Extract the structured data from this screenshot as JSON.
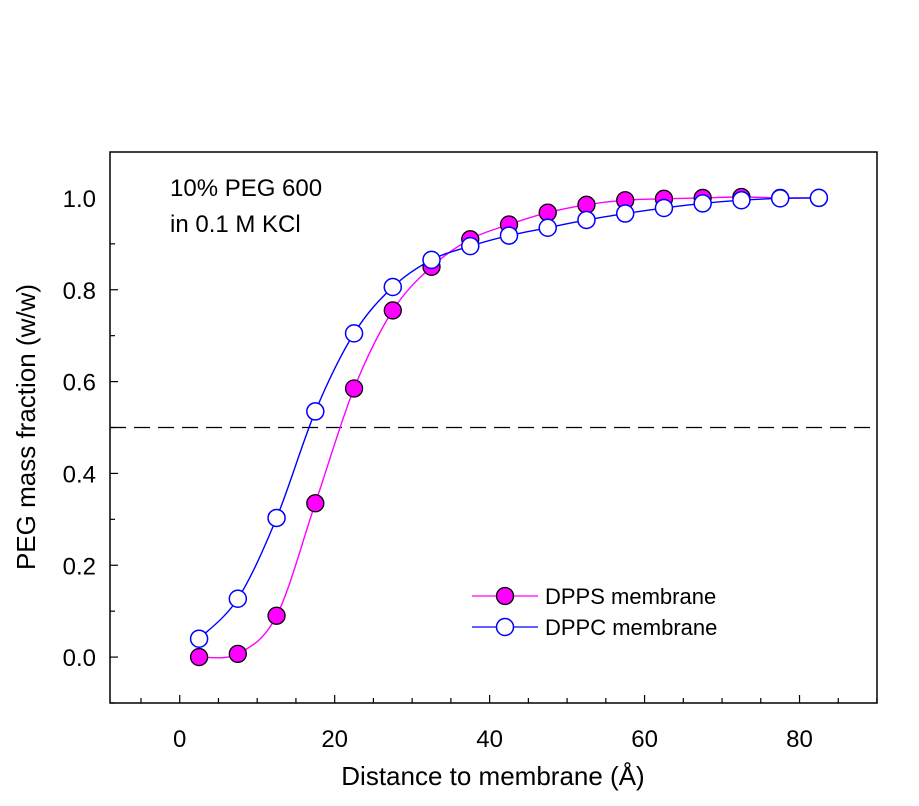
{
  "chart_data": {
    "type": "line",
    "annotation": [
      "10% PEG 600",
      "in 0.1 M KCl"
    ],
    "xlabel": "Distance to membrane (Å)",
    "ylabel": "PEG mass fraction (w/w)",
    "xlim": [
      -9,
      90
    ],
    "ylim": [
      -0.1,
      1.1
    ],
    "xticks": [
      0,
      20,
      40,
      60,
      80
    ],
    "yticks": [
      0.0,
      0.2,
      0.4,
      0.6,
      0.8,
      1.0
    ],
    "xtick_labels": [
      "0",
      "20",
      "40",
      "60",
      "80"
    ],
    "ytick_labels": [
      "0.0",
      "0.2",
      "0.4",
      "0.6",
      "0.8",
      "1.0"
    ],
    "xminor_step": 5,
    "reference_line": {
      "y": 0.5,
      "style": "dashed"
    },
    "legend_position": "lower-right",
    "series": [
      {
        "name": "DPPS membrane",
        "color": "#ff00ff",
        "marker_fill": "#ff00ff",
        "x": [
          2.5,
          7.5,
          12.5,
          17.5,
          22.5,
          27.5,
          32.5,
          37.5,
          42.5,
          47.5,
          52.5,
          57.5,
          62.5,
          67.5,
          72.5,
          77.5,
          82.5
        ],
        "y": [
          0.0,
          0.007,
          0.09,
          0.335,
          0.585,
          0.755,
          0.85,
          0.91,
          0.942,
          0.968,
          0.985,
          0.995,
          0.998,
          1.0,
          1.002,
          1.0,
          1.0
        ]
      },
      {
        "name": "DPPC membrane",
        "color": "#0000ff",
        "marker_fill": "#ffffff",
        "x": [
          2.5,
          7.5,
          12.5,
          17.5,
          22.5,
          27.5,
          32.5,
          37.5,
          42.5,
          47.5,
          52.5,
          57.5,
          62.5,
          67.5,
          72.5,
          77.5,
          82.5
        ],
        "y": [
          0.04,
          0.127,
          0.303,
          0.535,
          0.705,
          0.806,
          0.865,
          0.895,
          0.918,
          0.935,
          0.952,
          0.966,
          0.978,
          0.988,
          0.995,
          0.999,
          1.0
        ]
      }
    ]
  }
}
